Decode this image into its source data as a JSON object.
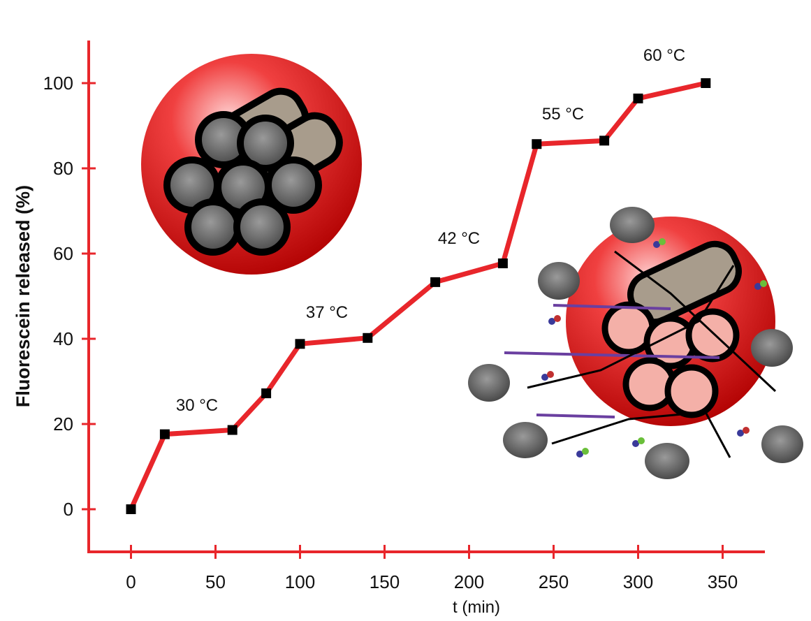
{
  "chart_data": {
    "type": "line",
    "xlabel": "t (min)",
    "ylabel": "Fluorescein released (%)",
    "x": [
      0,
      20,
      60,
      80,
      100,
      140,
      180,
      220,
      240,
      280,
      300,
      340
    ],
    "series": [
      {
        "color": "#e8262b",
        "values": [
          0,
          17.6,
          18.6,
          27.2,
          38.8,
          40.2,
          53.3,
          57.7,
          85.7,
          86.5,
          96.4,
          100
        ]
      }
    ],
    "annotations": [
      "30 °C",
      "37 °C",
      "42 °C",
      "55 °C",
      "60 °C"
    ],
    "xlim": [
      -25,
      375
    ],
    "ylim": [
      -10,
      110
    ],
    "xticks": [
      0,
      50,
      100,
      150,
      200,
      250,
      300,
      350
    ],
    "yticks": [
      0,
      20,
      40,
      60,
      80,
      100
    ],
    "axis_color": "#e8262b",
    "marker_color": "#000000"
  }
}
